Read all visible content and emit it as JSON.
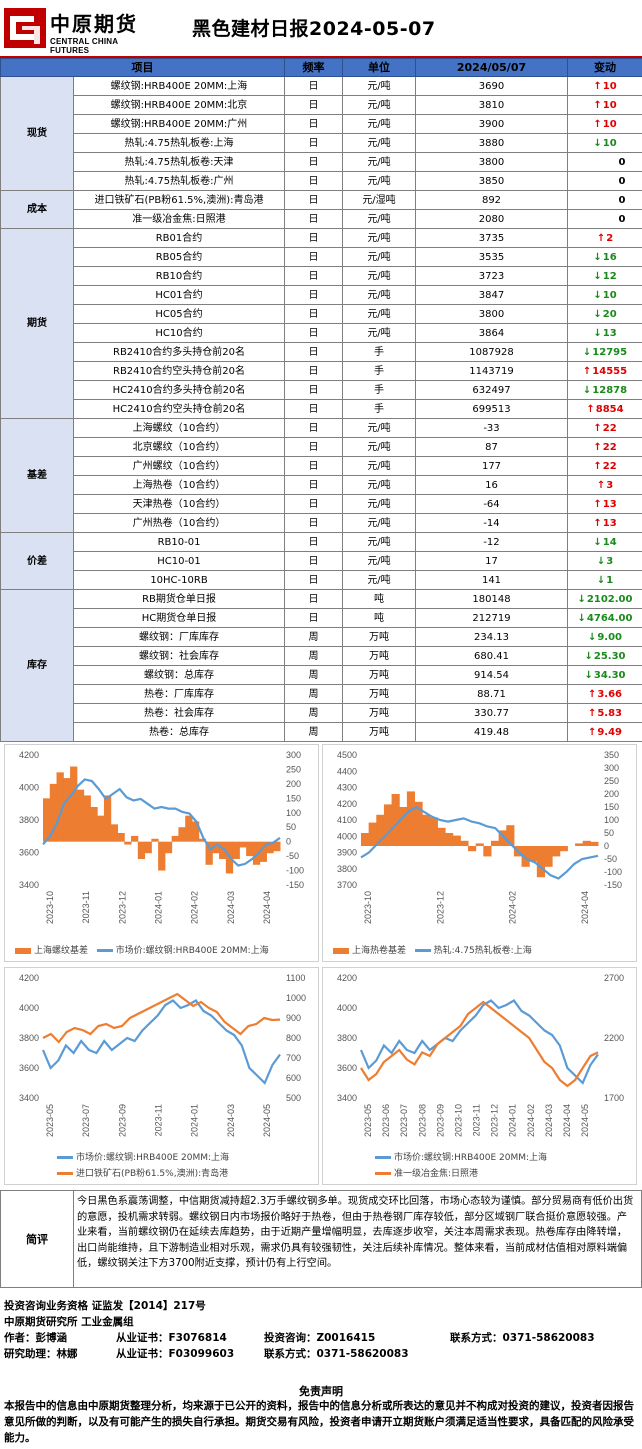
{
  "header": {
    "logo_cn": "中原期货",
    "logo_en": "CENTRAL CHINA FUTURES",
    "title": "黑色建材日报2024-05-07"
  },
  "table": {
    "headers": [
      "项目",
      "频率",
      "单位",
      "2024/05/07",
      "变动"
    ],
    "groups": [
      {
        "name": "现货",
        "rows": [
          {
            "item": "螺纹钢:HRB400E 20MM:上海",
            "freq": "日",
            "unit": "元/吨",
            "value": "3690",
            "dir": "up",
            "change": "10"
          },
          {
            "item": "螺纹钢:HRB400E 20MM:北京",
            "freq": "日",
            "unit": "元/吨",
            "value": "3810",
            "dir": "up",
            "change": "10"
          },
          {
            "item": "螺纹钢:HRB400E 20MM:广州",
            "freq": "日",
            "unit": "元/吨",
            "value": "3900",
            "dir": "up",
            "change": "10"
          },
          {
            "item": "热轧:4.75热轧板卷:上海",
            "freq": "日",
            "unit": "元/吨",
            "value": "3880",
            "dir": "down",
            "change": "10"
          },
          {
            "item": "热轧:4.75热轧板卷:天津",
            "freq": "日",
            "unit": "元/吨",
            "value": "3800",
            "dir": "flat",
            "change": "0"
          },
          {
            "item": "热轧:4.75热轧板卷:广州",
            "freq": "日",
            "unit": "元/吨",
            "value": "3850",
            "dir": "flat",
            "change": "0"
          }
        ]
      },
      {
        "name": "成本",
        "rows": [
          {
            "item": "进口铁矿石(PB粉61.5%,澳洲):青岛港",
            "freq": "日",
            "unit": "元/湿吨",
            "value": "892",
            "dir": "flat",
            "change": "0"
          },
          {
            "item": "准一级冶金焦:日照港",
            "freq": "日",
            "unit": "元/吨",
            "value": "2080",
            "dir": "flat",
            "change": "0"
          }
        ]
      },
      {
        "name": "期货",
        "rows": [
          {
            "item": "RB01合约",
            "freq": "日",
            "unit": "元/吨",
            "value": "3735",
            "dir": "up",
            "change": "2"
          },
          {
            "item": "RB05合约",
            "freq": "日",
            "unit": "元/吨",
            "value": "3535",
            "dir": "down",
            "change": "16"
          },
          {
            "item": "RB10合约",
            "freq": "日",
            "unit": "元/吨",
            "value": "3723",
            "dir": "down",
            "change": "12"
          },
          {
            "item": "HC01合约",
            "freq": "日",
            "unit": "元/吨",
            "value": "3847",
            "dir": "down",
            "change": "10"
          },
          {
            "item": "HC05合约",
            "freq": "日",
            "unit": "元/吨",
            "value": "3800",
            "dir": "down",
            "change": "20"
          },
          {
            "item": "HC10合约",
            "freq": "日",
            "unit": "元/吨",
            "value": "3864",
            "dir": "down",
            "change": "13"
          },
          {
            "item": "RB2410合约多头持仓前20名",
            "freq": "日",
            "unit": "手",
            "value": "1087928",
            "dir": "down",
            "change": "12795"
          },
          {
            "item": "RB2410合约空头持仓前20名",
            "freq": "日",
            "unit": "手",
            "value": "1143719",
            "dir": "up",
            "change": "14555"
          },
          {
            "item": "HC2410合约多头持仓前20名",
            "freq": "日",
            "unit": "手",
            "value": "632497",
            "dir": "down",
            "change": "12878"
          },
          {
            "item": "HC2410合约空头持仓前20名",
            "freq": "日",
            "unit": "手",
            "value": "699513",
            "dir": "up",
            "change": "8854"
          }
        ]
      },
      {
        "name": "基差",
        "rows": [
          {
            "item": "上海螺纹（10合约）",
            "freq": "日",
            "unit": "元/吨",
            "value": "-33",
            "dir": "up",
            "change": "22"
          },
          {
            "item": "北京螺纹（10合约）",
            "freq": "日",
            "unit": "元/吨",
            "value": "87",
            "dir": "up",
            "change": "22"
          },
          {
            "item": "广州螺纹（10合约）",
            "freq": "日",
            "unit": "元/吨",
            "value": "177",
            "dir": "up",
            "change": "22"
          },
          {
            "item": "上海热卷（10合约）",
            "freq": "日",
            "unit": "元/吨",
            "value": "16",
            "dir": "up",
            "change": "3"
          },
          {
            "item": "天津热卷（10合约）",
            "freq": "日",
            "unit": "元/吨",
            "value": "-64",
            "dir": "up",
            "change": "13"
          },
          {
            "item": "广州热卷（10合约）",
            "freq": "日",
            "unit": "元/吨",
            "value": "-14",
            "dir": "up",
            "change": "13"
          }
        ]
      },
      {
        "name": "价差",
        "rows": [
          {
            "item": "RB10-01",
            "freq": "日",
            "unit": "元/吨",
            "value": "-12",
            "dir": "down",
            "change": "14"
          },
          {
            "item": "HC10-01",
            "freq": "日",
            "unit": "元/吨",
            "value": "17",
            "dir": "down",
            "change": "3"
          },
          {
            "item": "10HC-10RB",
            "freq": "日",
            "unit": "元/吨",
            "value": "141",
            "dir": "down",
            "change": "1"
          }
        ]
      },
      {
        "name": "库存",
        "rows": [
          {
            "item": "RB期货仓单日报",
            "freq": "日",
            "unit": "吨",
            "value": "180148",
            "dir": "down",
            "change": "2102.00"
          },
          {
            "item": "HC期货仓单日报",
            "freq": "日",
            "unit": "吨",
            "value": "212719",
            "dir": "down",
            "change": "4764.00"
          },
          {
            "item": "螺纹钢：厂库库存",
            "freq": "周",
            "unit": "万吨",
            "value": "234.13",
            "dir": "down",
            "change": "9.00"
          },
          {
            "item": "螺纹钢：社会库存",
            "freq": "周",
            "unit": "万吨",
            "value": "680.41",
            "dir": "down",
            "change": "25.30"
          },
          {
            "item": "螺纹钢：总库存",
            "freq": "周",
            "unit": "万吨",
            "value": "914.54",
            "dir": "down",
            "change": "34.30"
          },
          {
            "item": "热卷：厂库库存",
            "freq": "周",
            "unit": "万吨",
            "value": "88.71",
            "dir": "up",
            "change": "3.66"
          },
          {
            "item": "热卷：社会库存",
            "freq": "周",
            "unit": "万吨",
            "value": "330.77",
            "dir": "up",
            "change": "5.83"
          },
          {
            "item": "热卷：总库存",
            "freq": "周",
            "unit": "万吨",
            "value": "419.48",
            "dir": "up",
            "change": "9.49"
          }
        ]
      }
    ]
  },
  "chart_data": [
    {
      "type": "area+line",
      "series": [
        {
          "name": "上海螺纹基差",
          "axis": "right",
          "style": "bar",
          "color": "#ed7d31"
        },
        {
          "name": "市场价:螺纹钢:HRB400E 20MM:上海",
          "axis": "left",
          "style": "line",
          "color": "#5b9bd5"
        }
      ],
      "x": [
        "2023-10",
        "2023-11",
        "2023-12",
        "2024-01",
        "2024-02",
        "2024-03",
        "2024-04"
      ],
      "ylim_left": [
        3400,
        4200
      ],
      "yticks_left": [
        "4200",
        "4000",
        "3800",
        "3600",
        "3400"
      ],
      "ylim_right": [
        -150,
        300
      ],
      "yticks_right": [
        "300",
        "250",
        "200",
        "150",
        "100",
        "50",
        "0",
        "-50",
        "-100",
        "-150"
      ],
      "line": [
        3650,
        3700,
        3780,
        3900,
        3950,
        4010,
        4050,
        4040,
        3990,
        3930,
        3960,
        3990,
        3940,
        3920,
        3930,
        3900,
        3870,
        3880,
        3870,
        3870,
        3850,
        3840,
        3790,
        3690,
        3620,
        3650,
        3620,
        3560,
        3520,
        3530,
        3560,
        3600,
        3650,
        3660,
        3690
      ],
      "bars": [
        150,
        200,
        240,
        220,
        260,
        180,
        160,
        120,
        90,
        160,
        60,
        30,
        -10,
        20,
        -60,
        -40,
        10,
        -100,
        -40,
        20,
        50,
        90,
        70,
        10,
        -80,
        -40,
        -60,
        -110,
        -60,
        -20,
        -50,
        -80,
        -70,
        -40,
        -33
      ]
    },
    {
      "type": "area+line",
      "series": [
        {
          "name": "上海热卷基差",
          "axis": "right",
          "style": "bar",
          "color": "#ed7d31"
        },
        {
          "name": "热轧:4.75热轧板卷:上海",
          "axis": "left",
          "style": "line",
          "color": "#5b9bd5"
        }
      ],
      "x": [
        "2023-10",
        "2023-12",
        "2024-02",
        "2024-04"
      ],
      "ylim_left": [
        3700,
        4500
      ],
      "yticks_left": [
        "4500",
        "4400",
        "4300",
        "4200",
        "4100",
        "4000",
        "3900",
        "3800",
        "3700"
      ],
      "ylim_right": [
        -150,
        350
      ],
      "yticks_right": [
        "350",
        "300",
        "250",
        "200",
        "150",
        "100",
        "50",
        "0",
        "-50",
        "-100",
        "-150"
      ],
      "line": [
        3870,
        3900,
        3950,
        4000,
        4050,
        4100,
        4150,
        4180,
        4150,
        4120,
        4100,
        4090,
        4100,
        4110,
        4090,
        4080,
        4060,
        4050,
        4000,
        3950,
        3900,
        3860,
        3840,
        3800,
        3760,
        3740,
        3780,
        3830,
        3860,
        3870,
        3880
      ],
      "bars": [
        50,
        90,
        120,
        160,
        200,
        150,
        210,
        170,
        120,
        110,
        70,
        50,
        40,
        20,
        -20,
        10,
        -40,
        20,
        60,
        80,
        -40,
        -80,
        -60,
        -120,
        -80,
        -40,
        -20,
        0,
        10,
        20,
        16
      ]
    },
    {
      "type": "line",
      "series": [
        {
          "name": "市场价:螺纹钢:HRB400E 20MM:上海",
          "axis": "left",
          "color": "#5b9bd5"
        },
        {
          "name": "进口铁矿石(PB粉61.5%,澳洲):青岛港",
          "axis": "right",
          "color": "#ed7d31"
        }
      ],
      "x": [
        "2023-05",
        "2023-07",
        "2023-09",
        "2023-11",
        "2024-01",
        "2024-03",
        "2024-05"
      ],
      "ylim_left": [
        3400,
        4200
      ],
      "yticks_left": [
        "4200",
        "4000",
        "3800",
        "3600",
        "3400"
      ],
      "ylim_right": [
        500,
        1100
      ],
      "yticks_right": [
        "1100",
        "1000",
        "900",
        "800",
        "700",
        "600",
        "500"
      ],
      "left": [
        3720,
        3600,
        3650,
        3750,
        3700,
        3780,
        3720,
        3700,
        3780,
        3720,
        3760,
        3800,
        3780,
        3850,
        3900,
        3950,
        4020,
        4050,
        4000,
        4020,
        4050,
        3980,
        3950,
        3900,
        3850,
        3820,
        3750,
        3600,
        3550,
        3500,
        3620,
        3690
      ],
      "right": [
        800,
        820,
        780,
        830,
        850,
        840,
        820,
        860,
        870,
        850,
        860,
        900,
        920,
        940,
        960,
        980,
        1000,
        1020,
        990,
        960,
        980,
        950,
        930,
        880,
        850,
        820,
        860,
        870,
        900,
        890,
        892
      ]
    },
    {
      "type": "line",
      "series": [
        {
          "name": "市场价:螺纹钢:HRB400E 20MM:上海",
          "axis": "left",
          "color": "#5b9bd5"
        },
        {
          "name": "准一级冶金焦:日照港",
          "axis": "right",
          "color": "#ed7d31"
        }
      ],
      "x": [
        "2023-05",
        "2023-06",
        "2023-07",
        "2023-08",
        "2023-09",
        "2023-10",
        "2023-11",
        "2023-12",
        "2024-01",
        "2024-02",
        "2024-03",
        "2024-04",
        "2024-05"
      ],
      "ylim_left": [
        3400,
        4200
      ],
      "yticks_left": [
        "4200",
        "4000",
        "3800",
        "3600",
        "3400"
      ],
      "ylim_right": [
        1700,
        2700
      ],
      "yticks_right": [
        "2700",
        "2200",
        "1700"
      ],
      "left": [
        3720,
        3600,
        3650,
        3750,
        3700,
        3780,
        3720,
        3700,
        3780,
        3720,
        3760,
        3800,
        3780,
        3850,
        3900,
        3950,
        4020,
        4050,
        4000,
        4020,
        4050,
        3980,
        3950,
        3900,
        3850,
        3820,
        3750,
        3600,
        3550,
        3500,
        3620,
        3690
      ],
      "right": [
        1950,
        1850,
        1900,
        2000,
        2050,
        2100,
        2020,
        1980,
        2080,
        2050,
        2150,
        2200,
        2250,
        2300,
        2400,
        2450,
        2500,
        2450,
        2400,
        2350,
        2300,
        2250,
        2200,
        2100,
        2000,
        1950,
        1850,
        1800,
        1850,
        1950,
        2050,
        2080
      ]
    }
  ],
  "legends": [
    [
      "上海螺纹基差",
      "市场价:螺纹钢:HRB400E 20MM:上海"
    ],
    [
      "上海热卷基差",
      "热轧:4.75热轧板卷:上海"
    ],
    [
      "市场价:螺纹钢:HRB400E 20MM:上海",
      "进口铁矿石(PB粉61.5%,澳洲):青岛港"
    ],
    [
      "市场价:螺纹钢:HRB400E 20MM:上海",
      "准一级冶金焦:日照港"
    ]
  ],
  "comment": {
    "label": "简评",
    "text": "今日黑色系震荡调整，中信期货减持超2.3万手螺纹钢多单。现货成交环比回落，市场心态较为谨慎。部分贸易商有低价出货的意愿，投机需求转弱。螺纹钢日内市场报价略好于热卷，但由于热卷钢厂库存较低，部分区域钢厂联合挺价意愿较强。产业来看，当前螺纹钢仍在延续去库趋势，由于近期产量增幅明显，去库逐步收窄，关注本周需求表现。热卷库存由降转增，出口尚能维持，且下游制造业相对乐观，需求仍具有较强韧性，关注后续补库情况。整体来看，当前成材估值相对原料端偏低，螺纹钢关注下方3700附近支撑，预计仍有上行空间。"
  },
  "info": {
    "line1": "投资咨询业务资格   证监发【2014】217号",
    "line2": "中原期货研究所    工业金属组",
    "author_label": "作者：彭博涵",
    "author_cert": "从业证书：F3076814",
    "author_consult": "投资咨询：Z0016415",
    "author_contact": "联系方式：0371-58620083",
    "assist_label": "研究助理：林娜",
    "assist_cert": "从业证书：F03099603",
    "assist_contact": "联系方式：0371-58620083"
  },
  "disclaimer": {
    "title": "免责声明",
    "text": "本报告中的信息由中原期货整理分析，均来源于已公开的资料，报告中的信息分析或所表达的意见并不构成对投资的建议，投资者因报告意见所做的判断，以及有可能产生的损失自行承担。期货交易有风险，投资者申请开立期货账户须满足适当性要求，具备匹配的风险承受能力。"
  }
}
